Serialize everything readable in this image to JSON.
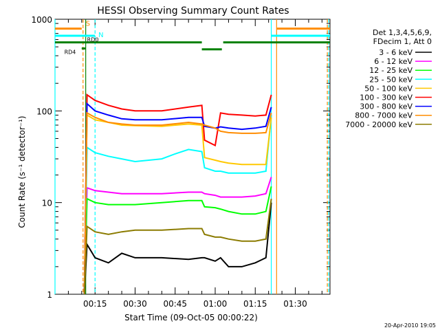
{
  "chart_data": {
    "type": "line",
    "title": "HESSI Observing Summary Count Rates",
    "xlabel": "Start Time (09-Oct-05 00:00:22)",
    "ylabel": "Count Rate (s⁻¹ detector⁻¹)",
    "yscale": "log",
    "ylim": [
      1,
      1000
    ],
    "xlim_minutes": [
      0,
      103
    ],
    "x_ticks": [
      {
        "label": "00:15",
        "t": 15
      },
      {
        "label": "00:30",
        "t": 30
      },
      {
        "label": "00:45",
        "t": 45
      },
      {
        "label": "01:00",
        "t": 60
      },
      {
        "label": "01:15",
        "t": 75
      },
      {
        "label": "01:30",
        "t": 90
      }
    ],
    "y_ticks": [
      {
        "label": "1",
        "v": 1
      },
      {
        "label": "10",
        "v": 10
      },
      {
        "label": "100",
        "v": 100
      },
      {
        "label": "1000",
        "v": 1000
      }
    ],
    "legend_header": [
      "Det 1,3,4,5,6,9,",
      "FDecim 1, Att 0"
    ],
    "legend_placement": "right",
    "grid": false,
    "series": [
      {
        "name": "3 - 6 keV",
        "color": "#000000",
        "t": [
          11,
          12,
          15,
          20,
          25,
          30,
          40,
          50,
          55,
          56,
          60,
          62,
          65,
          70,
          75,
          79,
          81
        ],
        "values": [
          1.0,
          3.5,
          2.5,
          2.2,
          2.8,
          2.5,
          2.5,
          2.4,
          2.5,
          2.5,
          2.3,
          2.5,
          2.0,
          2.0,
          2.2,
          2.5,
          10
        ]
      },
      {
        "name": "6 - 12 keV",
        "color": "#ff00ff",
        "t": [
          11,
          12,
          15,
          20,
          25,
          30,
          40,
          50,
          55,
          56,
          60,
          62,
          65,
          70,
          75,
          79,
          81
        ],
        "values": [
          1.0,
          14.5,
          13.5,
          13.0,
          12.5,
          12.5,
          12.5,
          13.0,
          13.0,
          12.5,
          12.0,
          11.5,
          11.5,
          11.5,
          11.8,
          12.5,
          19
        ]
      },
      {
        "name": "12 - 25 keV",
        "color": "#00ff00",
        "t": [
          11,
          12,
          15,
          20,
          25,
          30,
          40,
          50,
          55,
          56,
          60,
          62,
          65,
          70,
          75,
          79,
          81
        ],
        "values": [
          1.0,
          11.0,
          10.0,
          9.5,
          9.5,
          9.5,
          10.0,
          10.5,
          10.5,
          9.0,
          8.8,
          8.5,
          8.0,
          7.5,
          7.5,
          8.0,
          15
        ]
      },
      {
        "name": "25 - 50 keV",
        "color": "#00ffff",
        "t": [
          11,
          12,
          15,
          20,
          25,
          30,
          40,
          45,
          50,
          55,
          56,
          60,
          62,
          65,
          70,
          75,
          79,
          81
        ],
        "values": [
          1.0,
          40,
          35,
          32,
          30,
          28,
          30,
          34,
          38,
          36,
          24,
          22,
          22,
          21,
          21,
          21,
          22,
          90
        ]
      },
      {
        "name": "50 - 100 keV",
        "color": "#ffc800",
        "t": [
          11,
          12,
          15,
          20,
          25,
          30,
          40,
          50,
          55,
          56,
          60,
          62,
          65,
          70,
          75,
          79,
          81
        ],
        "values": [
          1.0,
          90,
          80,
          75,
          70,
          69,
          68,
          72,
          70,
          31,
          29,
          28,
          27,
          26,
          26,
          26,
          85
        ]
      },
      {
        "name": "100 - 300 keV",
        "color": "#ff0000",
        "t": [
          11,
          12,
          15,
          20,
          25,
          30,
          40,
          50,
          55,
          56,
          60,
          62,
          65,
          70,
          75,
          79,
          81
        ],
        "values": [
          1.0,
          150,
          130,
          115,
          105,
          100,
          100,
          110,
          115,
          48,
          42,
          95,
          92,
          90,
          88,
          90,
          150
        ]
      },
      {
        "name": "300 - 800 keV",
        "color": "#0000ff",
        "t": [
          11,
          12,
          15,
          20,
          25,
          30,
          40,
          50,
          55,
          56,
          60,
          62,
          65,
          70,
          75,
          79,
          81
        ],
        "values": [
          1.0,
          120,
          100,
          90,
          82,
          80,
          80,
          85,
          85,
          68,
          65,
          67,
          65,
          63,
          65,
          68,
          110
        ]
      },
      {
        "name": "800 - 7000 keV",
        "color": "#ff8c00",
        "t": [
          11,
          12,
          15,
          20,
          25,
          30,
          40,
          50,
          55,
          56,
          60,
          62,
          65,
          70,
          75,
          79,
          81
        ],
        "values": [
          1.0,
          95,
          85,
          75,
          72,
          70,
          70,
          75,
          72,
          70,
          65,
          60,
          58,
          57,
          57,
          58,
          95
        ]
      },
      {
        "name": "7000 - 20000 keV",
        "color": "#8b7b00",
        "t": [
          11,
          12,
          15,
          20,
          25,
          30,
          40,
          50,
          55,
          56,
          60,
          62,
          65,
          70,
          75,
          79,
          81
        ],
        "values": [
          1.0,
          5.5,
          4.8,
          4.5,
          4.8,
          5.0,
          5.0,
          5.2,
          5.2,
          4.5,
          4.2,
          4.2,
          4.0,
          3.8,
          3.8,
          4.0,
          11
        ]
      }
    ],
    "state_bars": [
      {
        "label": "S",
        "color": "#ff8c00",
        "level": 790,
        "ranges": [
          [
            0,
            10
          ],
          [
            83,
            103
          ]
        ]
      },
      {
        "label": "N",
        "color": "#00ffff",
        "level": 660,
        "ranges": [
          [
            0,
            15
          ],
          [
            81,
            103
          ]
        ]
      },
      {
        "label": "RD0",
        "color": "#008000",
        "level": 560,
        "ranges": [
          [
            0,
            55
          ],
          [
            63,
            103
          ]
        ]
      },
      {
        "label": "",
        "color": "#008000",
        "level": 470,
        "ranges": [
          [
            55,
            62.5
          ]
        ]
      },
      {
        "label": "RD4",
        "color": "#008000",
        "level": 480,
        "ranges": [
          [
            10,
            11.5
          ]
        ]
      }
    ],
    "vertical_markers": [
      {
        "t": 0,
        "color": "#00ffff",
        "style": "solid"
      },
      {
        "t": 10.5,
        "color": "#ff8c00",
        "style": "dashed"
      },
      {
        "t": 11.5,
        "color": "#008000",
        "style": "solid"
      },
      {
        "t": 15,
        "color": "#00ffff",
        "style": "dashed"
      },
      {
        "t": 81,
        "color": "#00ffff",
        "style": "solid"
      },
      {
        "t": 83,
        "color": "#ff8c00",
        "style": "solid"
      },
      {
        "t": 102,
        "color": "#ff8c00",
        "style": "dashed"
      },
      {
        "t": 102.5,
        "color": "#00ffff",
        "style": "dashed"
      }
    ],
    "date_stamp": "20-Apr-2010 19:05"
  }
}
